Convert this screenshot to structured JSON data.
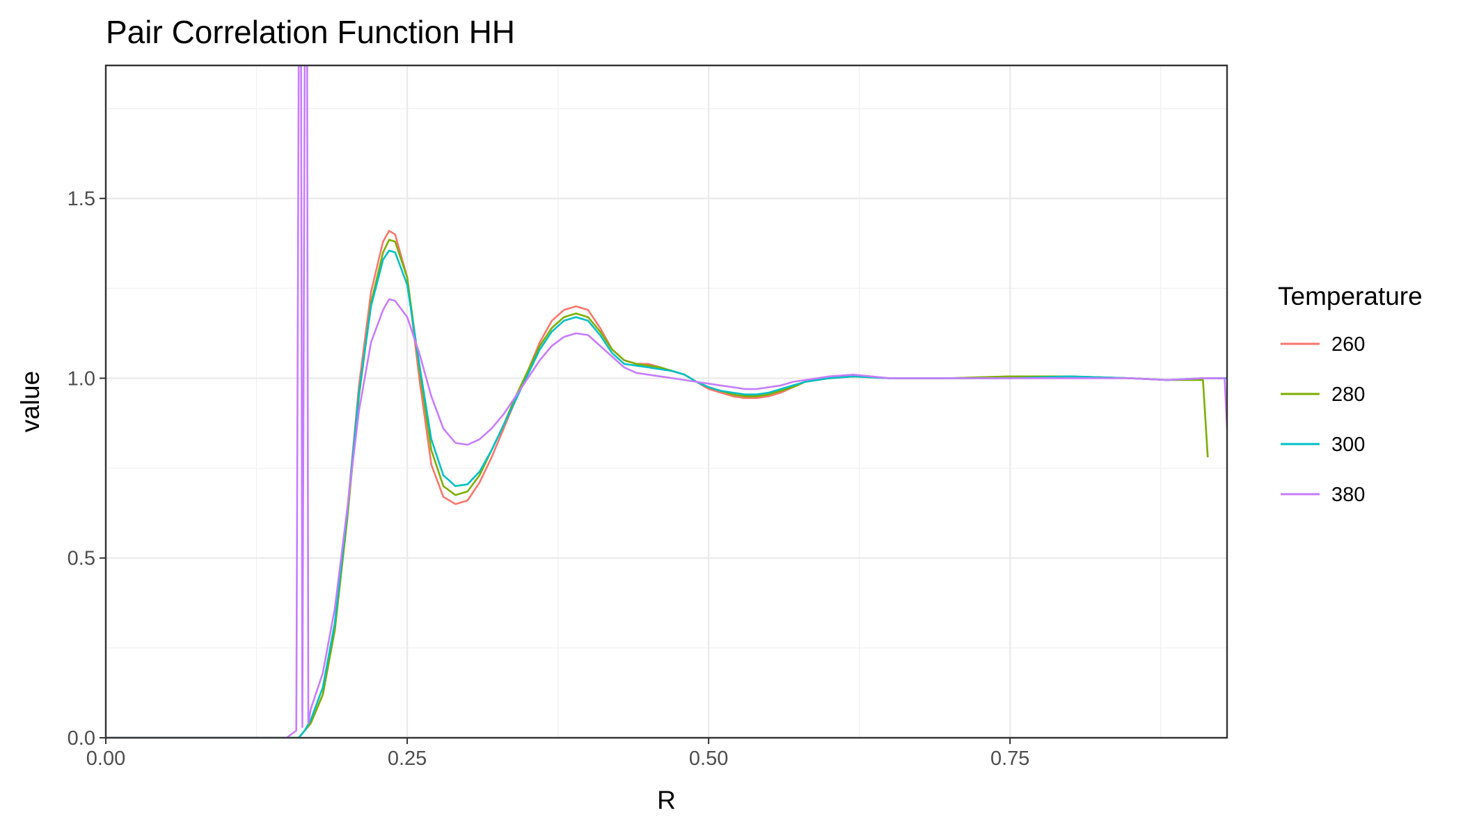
{
  "chart_data": {
    "type": "line",
    "title": "Pair Correlation Function HH",
    "xlabel": "R",
    "ylabel": "value",
    "xlim": [
      0,
      0.93
    ],
    "ylim": [
      0,
      1.87
    ],
    "x_ticks": [
      0.0,
      0.25,
      0.5,
      0.75
    ],
    "x_tick_labels": [
      "0.00",
      "0.25",
      "0.50",
      "0.75"
    ],
    "y_ticks": [
      0.0,
      0.5,
      1.0,
      1.5
    ],
    "y_tick_labels": [
      "0.0",
      "0.5",
      "1.0",
      "1.5"
    ],
    "grid": true,
    "legend": {
      "title": "Temperature",
      "position": "right"
    },
    "series": [
      {
        "name": "260",
        "color": "#F8766D",
        "points": [
          [
            0,
            0
          ],
          [
            0.16,
            0
          ],
          [
            0.165,
            0.02
          ],
          [
            0.17,
            0.04
          ],
          [
            0.18,
            0.12
          ],
          [
            0.19,
            0.3
          ],
          [
            0.2,
            0.62
          ],
          [
            0.21,
            0.98
          ],
          [
            0.22,
            1.24
          ],
          [
            0.23,
            1.38
          ],
          [
            0.235,
            1.41
          ],
          [
            0.24,
            1.4
          ],
          [
            0.25,
            1.28
          ],
          [
            0.26,
            1.0
          ],
          [
            0.27,
            0.76
          ],
          [
            0.28,
            0.67
          ],
          [
            0.29,
            0.65
          ],
          [
            0.3,
            0.66
          ],
          [
            0.31,
            0.71
          ],
          [
            0.32,
            0.78
          ],
          [
            0.33,
            0.86
          ],
          [
            0.34,
            0.94
          ],
          [
            0.35,
            1.02
          ],
          [
            0.36,
            1.1
          ],
          [
            0.37,
            1.16
          ],
          [
            0.38,
            1.19
          ],
          [
            0.39,
            1.2
          ],
          [
            0.4,
            1.19
          ],
          [
            0.41,
            1.14
          ],
          [
            0.42,
            1.08
          ],
          [
            0.43,
            1.05
          ],
          [
            0.44,
            1.04
          ],
          [
            0.45,
            1.04
          ],
          [
            0.46,
            1.03
          ],
          [
            0.47,
            1.02
          ],
          [
            0.48,
            1.01
          ],
          [
            0.49,
            0.99
          ],
          [
            0.5,
            0.97
          ],
          [
            0.51,
            0.96
          ],
          [
            0.52,
            0.95
          ],
          [
            0.53,
            0.945
          ],
          [
            0.54,
            0.945
          ],
          [
            0.55,
            0.95
          ],
          [
            0.56,
            0.96
          ],
          [
            0.57,
            0.975
          ],
          [
            0.58,
            0.99
          ],
          [
            0.6,
            1.0
          ],
          [
            0.62,
            1.005
          ],
          [
            0.65,
            1.0
          ],
          [
            0.7,
            1.0
          ],
          [
            0.75,
            1.005
          ],
          [
            0.8,
            1.005
          ],
          [
            0.85,
            1.0
          ],
          [
            0.88,
            0.995
          ],
          [
            0.91,
            1.0
          ],
          [
            0.93,
            1.0
          ]
        ]
      },
      {
        "name": "280",
        "color": "#7CAE00",
        "points": [
          [
            0,
            0
          ],
          [
            0.16,
            0
          ],
          [
            0.165,
            0.02
          ],
          [
            0.17,
            0.04
          ],
          [
            0.18,
            0.12
          ],
          [
            0.19,
            0.3
          ],
          [
            0.2,
            0.6
          ],
          [
            0.21,
            0.95
          ],
          [
            0.22,
            1.21
          ],
          [
            0.23,
            1.35
          ],
          [
            0.235,
            1.385
          ],
          [
            0.24,
            1.38
          ],
          [
            0.25,
            1.28
          ],
          [
            0.26,
            1.03
          ],
          [
            0.27,
            0.8
          ],
          [
            0.28,
            0.7
          ],
          [
            0.29,
            0.675
          ],
          [
            0.3,
            0.685
          ],
          [
            0.31,
            0.73
          ],
          [
            0.32,
            0.8
          ],
          [
            0.33,
            0.87
          ],
          [
            0.34,
            0.95
          ],
          [
            0.35,
            1.02
          ],
          [
            0.36,
            1.09
          ],
          [
            0.37,
            1.14
          ],
          [
            0.38,
            1.17
          ],
          [
            0.39,
            1.18
          ],
          [
            0.4,
            1.17
          ],
          [
            0.41,
            1.13
          ],
          [
            0.42,
            1.08
          ],
          [
            0.43,
            1.05
          ],
          [
            0.44,
            1.04
          ],
          [
            0.45,
            1.035
          ],
          [
            0.46,
            1.03
          ],
          [
            0.47,
            1.02
          ],
          [
            0.48,
            1.01
          ],
          [
            0.49,
            0.99
          ],
          [
            0.5,
            0.975
          ],
          [
            0.51,
            0.965
          ],
          [
            0.52,
            0.955
          ],
          [
            0.53,
            0.95
          ],
          [
            0.54,
            0.95
          ],
          [
            0.55,
            0.955
          ],
          [
            0.56,
            0.965
          ],
          [
            0.57,
            0.975
          ],
          [
            0.58,
            0.99
          ],
          [
            0.6,
            1.0
          ],
          [
            0.62,
            1.005
          ],
          [
            0.65,
            1.0
          ],
          [
            0.7,
            1.0
          ],
          [
            0.75,
            1.005
          ],
          [
            0.8,
            1.005
          ],
          [
            0.85,
            1.0
          ],
          [
            0.88,
            0.995
          ],
          [
            0.91,
            0.995
          ],
          [
            0.914,
            0.78
          ]
        ]
      },
      {
        "name": "300",
        "color": "#00BFC4",
        "points": [
          [
            0,
            0
          ],
          [
            0.16,
            0
          ],
          [
            0.165,
            0.02
          ],
          [
            0.17,
            0.05
          ],
          [
            0.18,
            0.14
          ],
          [
            0.19,
            0.32
          ],
          [
            0.2,
            0.62
          ],
          [
            0.21,
            0.96
          ],
          [
            0.22,
            1.2
          ],
          [
            0.23,
            1.33
          ],
          [
            0.235,
            1.355
          ],
          [
            0.24,
            1.35
          ],
          [
            0.25,
            1.26
          ],
          [
            0.26,
            1.04
          ],
          [
            0.27,
            0.83
          ],
          [
            0.28,
            0.73
          ],
          [
            0.29,
            0.7
          ],
          [
            0.3,
            0.705
          ],
          [
            0.31,
            0.74
          ],
          [
            0.32,
            0.8
          ],
          [
            0.33,
            0.87
          ],
          [
            0.34,
            0.94
          ],
          [
            0.35,
            1.01
          ],
          [
            0.36,
            1.08
          ],
          [
            0.37,
            1.13
          ],
          [
            0.38,
            1.16
          ],
          [
            0.39,
            1.17
          ],
          [
            0.4,
            1.16
          ],
          [
            0.41,
            1.12
          ],
          [
            0.42,
            1.07
          ],
          [
            0.43,
            1.04
          ],
          [
            0.44,
            1.035
          ],
          [
            0.45,
            1.03
          ],
          [
            0.46,
            1.025
          ],
          [
            0.47,
            1.02
          ],
          [
            0.48,
            1.01
          ],
          [
            0.49,
            0.99
          ],
          [
            0.5,
            0.975
          ],
          [
            0.51,
            0.965
          ],
          [
            0.52,
            0.96
          ],
          [
            0.53,
            0.955
          ],
          [
            0.54,
            0.955
          ],
          [
            0.55,
            0.96
          ],
          [
            0.56,
            0.97
          ],
          [
            0.57,
            0.98
          ],
          [
            0.58,
            0.99
          ],
          [
            0.6,
            1.0
          ],
          [
            0.62,
            1.005
          ],
          [
            0.65,
            1.0
          ],
          [
            0.7,
            1.0
          ],
          [
            0.75,
            1.0
          ],
          [
            0.8,
            1.005
          ],
          [
            0.85,
            1.0
          ],
          [
            0.88,
            0.995
          ],
          [
            0.91,
            1.0
          ],
          [
            0.93,
            1.0
          ]
        ]
      },
      {
        "name": "380",
        "color": "#C77CFF",
        "points": [
          [
            0,
            0
          ],
          [
            0.15,
            0
          ],
          [
            0.158,
            0.02
          ],
          [
            0.16,
            1.87
          ],
          [
            0.162,
            1.87
          ],
          [
            0.163,
            0.03
          ],
          [
            0.165,
            1.87
          ],
          [
            0.167,
            1.87
          ],
          [
            0.168,
            0.04
          ],
          [
            0.17,
            0.08
          ],
          [
            0.18,
            0.18
          ],
          [
            0.19,
            0.36
          ],
          [
            0.2,
            0.63
          ],
          [
            0.21,
            0.91
          ],
          [
            0.22,
            1.1
          ],
          [
            0.23,
            1.19
          ],
          [
            0.235,
            1.22
          ],
          [
            0.24,
            1.215
          ],
          [
            0.25,
            1.17
          ],
          [
            0.26,
            1.07
          ],
          [
            0.27,
            0.95
          ],
          [
            0.28,
            0.86
          ],
          [
            0.29,
            0.82
          ],
          [
            0.3,
            0.815
          ],
          [
            0.31,
            0.83
          ],
          [
            0.32,
            0.86
          ],
          [
            0.33,
            0.9
          ],
          [
            0.34,
            0.95
          ],
          [
            0.35,
            1.0
          ],
          [
            0.36,
            1.05
          ],
          [
            0.37,
            1.09
          ],
          [
            0.38,
            1.115
          ],
          [
            0.39,
            1.125
          ],
          [
            0.4,
            1.12
          ],
          [
            0.41,
            1.09
          ],
          [
            0.42,
            1.06
          ],
          [
            0.43,
            1.03
          ],
          [
            0.44,
            1.015
          ],
          [
            0.45,
            1.01
          ],
          [
            0.46,
            1.005
          ],
          [
            0.47,
            1.0
          ],
          [
            0.48,
            0.995
          ],
          [
            0.49,
            0.99
          ],
          [
            0.5,
            0.985
          ],
          [
            0.51,
            0.98
          ],
          [
            0.52,
            0.975
          ],
          [
            0.53,
            0.97
          ],
          [
            0.54,
            0.97
          ],
          [
            0.55,
            0.975
          ],
          [
            0.56,
            0.98
          ],
          [
            0.57,
            0.99
          ],
          [
            0.58,
            0.995
          ],
          [
            0.6,
            1.005
          ],
          [
            0.62,
            1.01
          ],
          [
            0.65,
            1.0
          ],
          [
            0.7,
            1.0
          ],
          [
            0.75,
            1.0
          ],
          [
            0.8,
            1.0
          ],
          [
            0.85,
            1.0
          ],
          [
            0.88,
            0.995
          ],
          [
            0.91,
            1.0
          ],
          [
            0.928,
            1.0
          ],
          [
            0.93,
            0.86
          ]
        ]
      }
    ]
  }
}
